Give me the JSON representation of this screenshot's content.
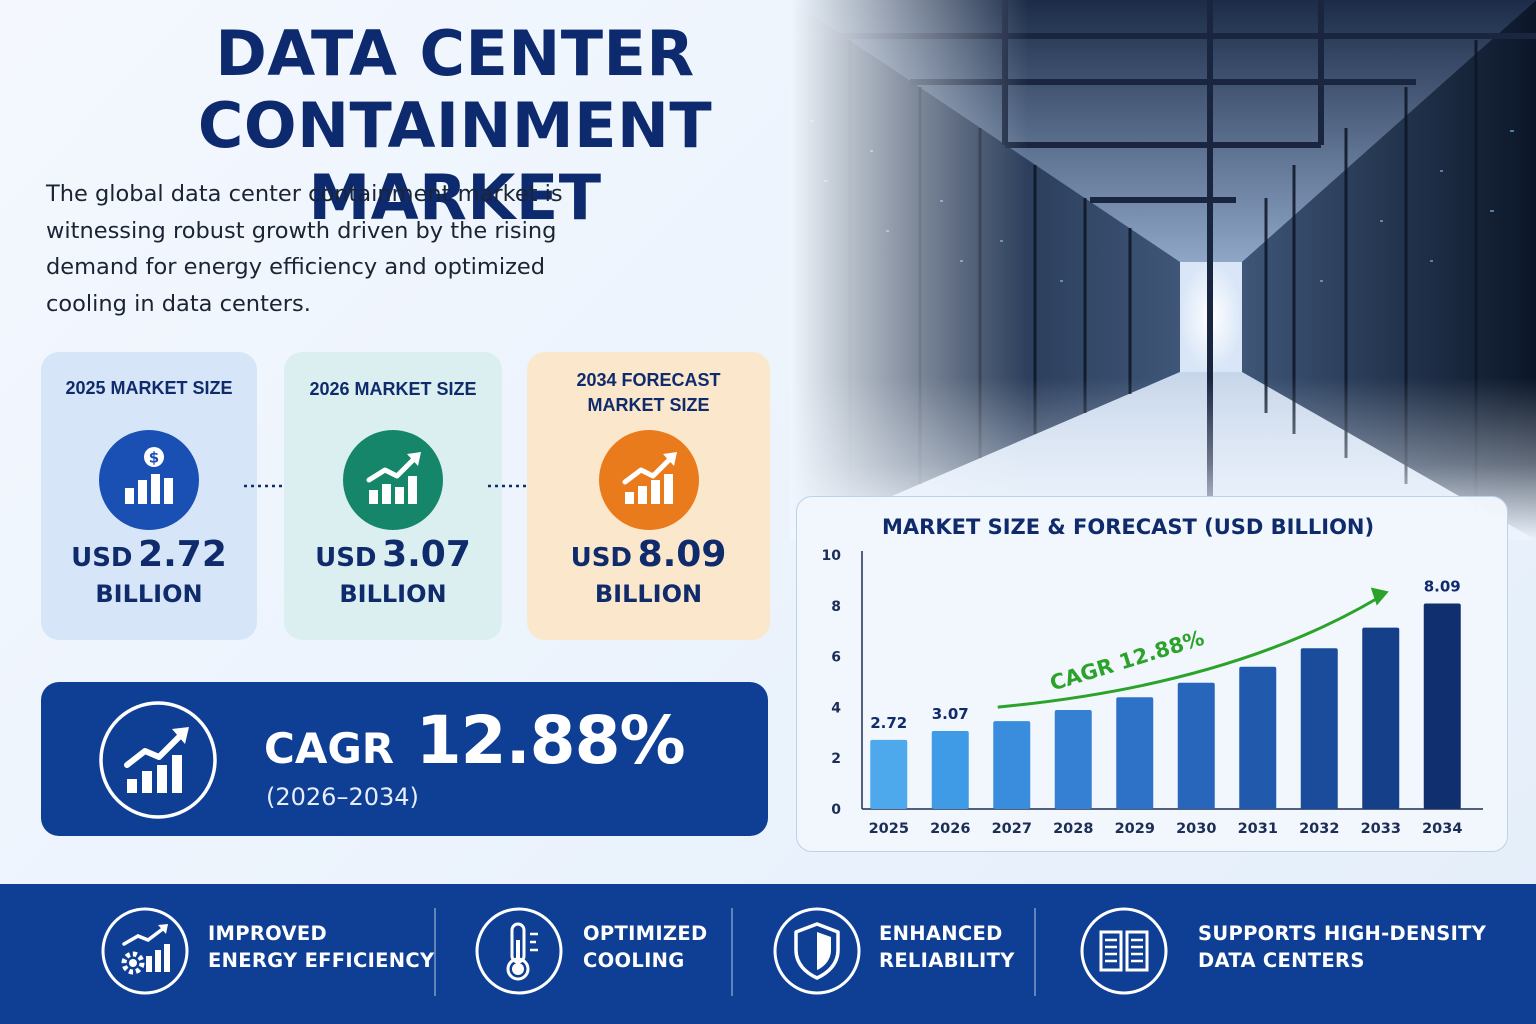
{
  "header": {
    "title_line1": "DATA CENTER CONTAINMENT",
    "title_line2": "MARKET",
    "intro": [
      "The global data center containment market is",
      "witnessing robust growth driven by the rising",
      "demand for energy efficiency and optimized",
      "cooling in data centers."
    ]
  },
  "cards": [
    {
      "label_line1": "2025 MARKET SIZE",
      "label_line2": "",
      "currency": "USD",
      "value": "2.72",
      "unit": "BILLION",
      "icon": "dollar-growth-icon",
      "color": "#1a4fb3"
    },
    {
      "label_line1": "2026 MARKET SIZE",
      "label_line2": "",
      "currency": "USD",
      "value": "3.07",
      "unit": "BILLION",
      "icon": "growth-chart-icon",
      "color": "#15866a"
    },
    {
      "label_line1": "2034 FORECAST",
      "label_line2": "MARKET SIZE",
      "currency": "USD",
      "value": "8.09",
      "unit": "BILLION",
      "icon": "growth-chart-icon",
      "color": "#ea7b1c"
    }
  ],
  "cagr": {
    "label": "CAGR",
    "value": "12.88%",
    "period": "(2026–2034)"
  },
  "features": [
    {
      "line1": "IMPROVED",
      "line2": "ENERGY EFFICIENCY",
      "icon": "gear-growth-icon"
    },
    {
      "line1": "OPTIMIZED",
      "line2": "COOLING",
      "icon": "thermometer-icon"
    },
    {
      "line1": "ENHANCED",
      "line2": "RELIABILITY",
      "icon": "shield-icon"
    },
    {
      "line1": "SUPPORTS HIGH-DENSITY",
      "line2": "DATA CENTERS",
      "icon": "server-rack-icon"
    }
  ],
  "colors": {
    "navy": "#0f2b6b",
    "band_blue": "#0f3f95",
    "growth_green": "#2ba32b",
    "bar_light": "#4ea8ec",
    "bar_dark": "#0f2f6e"
  },
  "chart_data": {
    "type": "bar",
    "title": "MARKET SIZE & FORECAST (USD BILLION)",
    "categories": [
      "2025",
      "2026",
      "2027",
      "2028",
      "2029",
      "2030",
      "2031",
      "2032",
      "2033",
      "2034"
    ],
    "values": [
      2.72,
      3.07,
      3.46,
      3.9,
      4.4,
      4.97,
      5.6,
      6.33,
      7.14,
      8.09
    ],
    "data_labels": {
      "2025": "2.72",
      "2026": "3.07",
      "2034": "8.09"
    },
    "annotation": "CAGR 12.88%",
    "yticks": [
      "0",
      "2",
      "4",
      "6",
      "8",
      "10"
    ],
    "ylim": [
      0,
      10
    ],
    "xlabel": "",
    "ylabel": "",
    "grid": false,
    "legend": "none"
  }
}
